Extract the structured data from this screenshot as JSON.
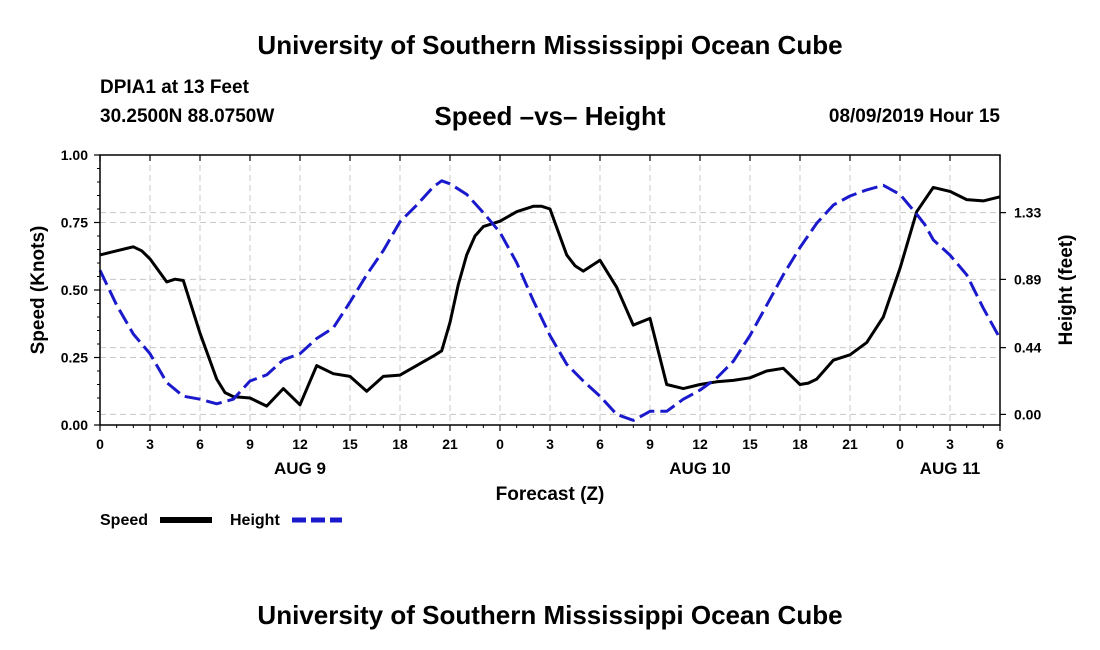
{
  "header": {
    "title": "University of Southern Mississippi Ocean Cube",
    "station_id": "DPIA1 at 13 Feet",
    "coords": "30.2500N 88.0750W",
    "chart_title": "Speed –vs– Height",
    "timestamp": "08/09/2019 Hour 15"
  },
  "footer": {
    "title": "University of Southern Mississippi Ocean Cube"
  },
  "colors": {
    "speed": "#000000",
    "height": "#1a1acc",
    "grid": "#c8c8c8"
  },
  "chart_data": {
    "type": "line",
    "title": "Speed –vs– Height",
    "xlabel": "Forecast (Z)",
    "ylabel": "Speed (Knots)",
    "y2label": "Height (feet)",
    "xlim": [
      0,
      54
    ],
    "ylim": [
      0,
      1.0
    ],
    "y2lim": [
      -0.07,
      1.71
    ],
    "x_ticks": [
      0,
      3,
      6,
      9,
      12,
      15,
      18,
      21,
      24,
      27,
      30,
      33,
      36,
      39,
      42,
      45,
      48,
      51,
      54
    ],
    "x_tick_labels": [
      "0",
      "3",
      "6",
      "9",
      "12",
      "15",
      "18",
      "21",
      "0",
      "3",
      "6",
      "9",
      "12",
      "15",
      "18",
      "21",
      "0",
      "3",
      "6"
    ],
    "y_ticks": [
      0,
      0.25,
      0.5,
      0.75,
      1.0
    ],
    "y_tick_labels": [
      "0.00",
      "0.25",
      "0.50",
      "0.75",
      "1.00"
    ],
    "y2_ticks": [
      0.0,
      0.44,
      0.89,
      1.33
    ],
    "y2_tick_labels": [
      "0.00",
      "0.44",
      "0.89",
      "1.33"
    ],
    "date_labels": [
      {
        "x": 12,
        "label": "AUG 9"
      },
      {
        "x": 36,
        "label": "AUG 10"
      },
      {
        "x": 51,
        "label": "AUG 11"
      }
    ],
    "grid": true,
    "legend_position": "bottom-left",
    "series": [
      {
        "name": "Speed",
        "axis": "left",
        "style": "solid",
        "x": [
          0,
          1,
          2,
          2.5,
          3,
          4,
          4.5,
          5,
          6,
          7,
          7.5,
          8,
          9,
          10,
          11,
          12,
          13,
          14,
          15,
          16,
          17,
          18,
          19,
          20,
          20.5,
          21,
          21.5,
          22,
          22.5,
          23,
          24,
          25,
          26,
          26.5,
          27,
          28,
          28.5,
          29,
          30,
          31,
          32,
          33,
          34,
          35,
          36,
          37,
          38,
          39,
          40,
          41,
          42,
          42.5,
          43,
          44,
          45,
          46,
          47,
          48,
          49,
          50,
          51,
          52,
          53,
          54
        ],
        "values": [
          0.63,
          0.645,
          0.66,
          0.645,
          0.615,
          0.53,
          0.54,
          0.535,
          0.34,
          0.17,
          0.12,
          0.105,
          0.1,
          0.07,
          0.135,
          0.075,
          0.22,
          0.19,
          0.18,
          0.125,
          0.18,
          0.185,
          0.22,
          0.255,
          0.275,
          0.38,
          0.52,
          0.63,
          0.7,
          0.735,
          0.755,
          0.79,
          0.81,
          0.81,
          0.8,
          0.63,
          0.59,
          0.57,
          0.61,
          0.51,
          0.37,
          0.395,
          0.15,
          0.135,
          0.15,
          0.16,
          0.165,
          0.175,
          0.2,
          0.21,
          0.15,
          0.155,
          0.17,
          0.24,
          0.26,
          0.305,
          0.4,
          0.58,
          0.79,
          0.88,
          0.865,
          0.835,
          0.83,
          0.845
        ]
      },
      {
        "name": "Height",
        "axis": "right",
        "style": "dashed",
        "x": [
          0,
          1,
          2,
          3,
          4,
          5,
          6,
          7,
          8,
          9,
          10,
          11,
          12,
          13,
          14,
          15,
          16,
          17,
          18,
          19,
          20,
          20.5,
          21,
          22,
          23,
          24,
          25,
          26,
          27,
          28,
          29,
          30,
          31,
          32,
          32.5,
          33,
          34,
          35,
          36,
          37,
          38,
          39,
          40,
          41,
          42,
          43,
          44,
          45,
          46,
          47,
          48,
          49,
          49.5,
          50,
          51,
          52,
          53,
          54
        ],
        "values": [
          0.95,
          0.72,
          0.53,
          0.4,
          0.21,
          0.12,
          0.1,
          0.07,
          0.1,
          0.22,
          0.26,
          0.36,
          0.4,
          0.5,
          0.57,
          0.74,
          0.92,
          1.08,
          1.27,
          1.38,
          1.5,
          1.54,
          1.52,
          1.45,
          1.33,
          1.2,
          1.0,
          0.75,
          0.52,
          0.33,
          0.22,
          0.12,
          0.0,
          -0.04,
          -0.01,
          0.02,
          0.02,
          0.1,
          0.16,
          0.24,
          0.35,
          0.52,
          0.72,
          0.92,
          1.1,
          1.26,
          1.38,
          1.44,
          1.48,
          1.51,
          1.45,
          1.32,
          1.25,
          1.15,
          1.05,
          0.92,
          0.7,
          0.5
        ]
      }
    ]
  }
}
